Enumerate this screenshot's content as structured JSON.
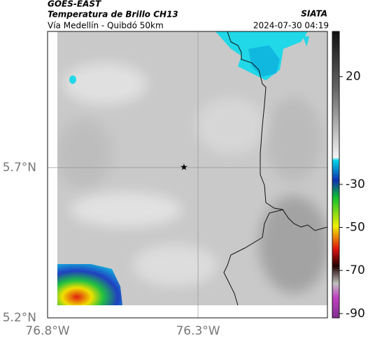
{
  "header": {
    "title": "GOES-EAST",
    "subtitle": "Temperatura de Brillo CH13",
    "location": "Vía Medellín - Quibdó 50km",
    "source": "SIATA",
    "datetime": "2024-07-30 04:19"
  },
  "map": {
    "xlim": [
      -76.8,
      -75.87
    ],
    "ylim": [
      5.2,
      6.153
    ],
    "xticks": [
      {
        "value": -76.8,
        "label": "76.8°W"
      },
      {
        "value": -76.3,
        "label": "76.3°W"
      }
    ],
    "yticks": [
      {
        "value": 5.2,
        "label": "5.2°N"
      },
      {
        "value": 5.7,
        "label": "5.7°N"
      }
    ]
  },
  "colorbar": {
    "lim": [
      -92,
      41
    ],
    "ticks": [
      20,
      -30,
      -50,
      -70,
      -90
    ]
  }
}
